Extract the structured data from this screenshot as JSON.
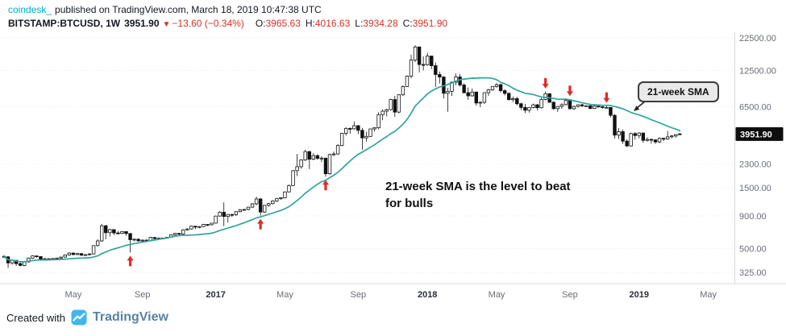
{
  "header": {
    "author": "coindesk_",
    "published": "published on TradingView.com, March 18, 2019 10:47:38 UTC",
    "symbol": "BITSTAMP:BTCUSD, 1W",
    "price": "3951.90",
    "direction": "▼",
    "change": "−13.60 (−0.34%)",
    "ohlc": [
      {
        "label": "O:",
        "value": "3965.63"
      },
      {
        "label": "H:",
        "value": "4016.63"
      },
      {
        "label": "L:",
        "value": "3934.28"
      },
      {
        "label": "C:",
        "value": "3951.90"
      }
    ]
  },
  "annotations": {
    "note_line1": "21-week SMA is the level to beat",
    "note_line2": "for bulls",
    "callout": "21-week SMA"
  },
  "footer": {
    "created_with": "Created with",
    "brand": "TradingView"
  },
  "colors": {
    "sma": "#2fa69a",
    "arrow": "#e12b2b",
    "candle_up": "#ffffff",
    "candle_down": "#111111",
    "candle_stroke": "#111111",
    "badge_bg": "#0e0e0e",
    "axis_line": "#d6d9e0",
    "grid": "#e7e9ef",
    "negative": "#d93025",
    "author_accent": "#00a5cf"
  },
  "chart_data": {
    "type": "candlestick",
    "symbol": "BITSTAMP:BTCUSD",
    "timeframe": "1W",
    "scale": "log",
    "y_axis": {
      "labels": [
        22500,
        12500,
        6500,
        2300,
        1500,
        900,
        500,
        325
      ],
      "current_price": 3951.9
    },
    "x_axis": {
      "ticks": [
        {
          "label": "May",
          "week": 17,
          "bold": false
        },
        {
          "label": "Sep",
          "week": 34,
          "bold": false
        },
        {
          "label": "2017",
          "week": 52,
          "bold": true
        },
        {
          "label": "May",
          "week": 69,
          "bold": false
        },
        {
          "label": "Sep",
          "week": 87,
          "bold": false
        },
        {
          "label": "2018",
          "week": 104,
          "bold": true
        },
        {
          "label": "May",
          "week": 121,
          "bold": false
        },
        {
          "label": "Sep",
          "week": 139,
          "bold": false
        },
        {
          "label": "2019",
          "week": 156,
          "bold": true
        },
        {
          "label": "May",
          "week": 173,
          "bold": false
        }
      ]
    },
    "sma": {
      "period": 21,
      "label": "21-week SMA"
    },
    "arrows_up_weeks": [
      31,
      63,
      79
    ],
    "arrows_down_weeks": [
      133,
      139,
      148
    ],
    "candles": [
      [
        433,
        444,
        420,
        430
      ],
      [
        430,
        435,
        352,
        385
      ],
      [
        385,
        410,
        372,
        403
      ],
      [
        403,
        408,
        365,
        380
      ],
      [
        380,
        398,
        362,
        368
      ],
      [
        368,
        400,
        363,
        392
      ],
      [
        392,
        424,
        388,
        420
      ],
      [
        420,
        442,
        415,
        437
      ],
      [
        437,
        441,
        424,
        432
      ],
      [
        432,
        434,
        402,
        410
      ],
      [
        410,
        422,
        405,
        415
      ],
      [
        415,
        420,
        404,
        412
      ],
      [
        412,
        421,
        407,
        417
      ],
      [
        417,
        424,
        411,
        420
      ],
      [
        420,
        432,
        415,
        428
      ],
      [
        428,
        450,
        423,
        445
      ],
      [
        445,
        466,
        440,
        460
      ],
      [
        460,
        465,
        442,
        448
      ],
      [
        448,
        460,
        443,
        456
      ],
      [
        456,
        459,
        436,
        443
      ],
      [
        443,
        452,
        437,
        447
      ],
      [
        447,
        460,
        441,
        453
      ],
      [
        453,
        530,
        448,
        526
      ],
      [
        526,
        590,
        519,
        573
      ],
      [
        573,
        780,
        565,
        754
      ],
      [
        754,
        765,
        590,
        665
      ],
      [
        665,
        715,
        620,
        703
      ],
      [
        703,
        710,
        640,
        662
      ],
      [
        662,
        688,
        645,
        657
      ],
      [
        657,
        684,
        649,
        679
      ],
      [
        679,
        682,
        630,
        655
      ],
      [
        655,
        660,
        465,
        586
      ],
      [
        586,
        600,
        569,
        591
      ],
      [
        591,
        598,
        565,
        574
      ],
      [
        574,
        590,
        567,
        581
      ],
      [
        581,
        590,
        566,
        573
      ],
      [
        573,
        617,
        570,
        610
      ],
      [
        610,
        615,
        589,
        598
      ],
      [
        598,
        610,
        591,
        602
      ],
      [
        602,
        608,
        593,
        604
      ],
      [
        604,
        618,
        597,
        611
      ],
      [
        611,
        645,
        606,
        640
      ],
      [
        640,
        662,
        634,
        657
      ],
      [
        657,
        660,
        630,
        650
      ],
      [
        650,
        708,
        645,
        700
      ],
      [
        700,
        720,
        691,
        711
      ],
      [
        711,
        755,
        704,
        748
      ],
      [
        748,
        752,
        710,
        735
      ],
      [
        735,
        750,
        719,
        743
      ],
      [
        743,
        780,
        737,
        772
      ],
      [
        772,
        778,
        749,
        768
      ],
      [
        768,
        795,
        759,
        790
      ],
      [
        790,
        905,
        784,
        898
      ],
      [
        898,
        982,
        889,
        963
      ],
      [
        963,
        1150,
        750,
        892
      ],
      [
        892,
        930,
        799,
        924
      ],
      [
        924,
        935,
        884,
        921
      ],
      [
        921,
        980,
        899,
        972
      ],
      [
        972,
        1020,
        959,
        1005
      ],
      [
        1005,
        1025,
        984,
        1012
      ],
      [
        1012,
        1065,
        999,
        1055
      ],
      [
        1055,
        1135,
        1044,
        1121
      ],
      [
        1121,
        1280,
        1089,
        1223
      ],
      [
        1223,
        1245,
        905,
        966
      ],
      [
        966,
        1100,
        949,
        1090
      ],
      [
        1090,
        1140,
        1059,
        1125
      ],
      [
        1125,
        1195,
        1109,
        1180
      ],
      [
        1180,
        1245,
        1164,
        1230
      ],
      [
        1230,
        1265,
        1204,
        1250
      ],
      [
        1250,
        1400,
        1239,
        1390
      ],
      [
        1390,
        1590,
        1379,
        1560
      ],
      [
        1560,
        2060,
        1539,
        2040
      ],
      [
        2040,
        2760,
        1850,
        2190
      ],
      [
        2190,
        2510,
        2109,
        2480
      ],
      [
        2480,
        2980,
        2439,
        2880
      ],
      [
        2880,
        2920,
        2100,
        2510
      ],
      [
        2510,
        2800,
        2459,
        2680
      ],
      [
        2680,
        2740,
        2479,
        2550
      ],
      [
        2550,
        2650,
        2380,
        2560
      ],
      [
        2560,
        2580,
        1830,
        1930
      ],
      [
        1930,
        2780,
        1889,
        2730
      ],
      [
        2730,
        2880,
        2659,
        2760
      ],
      [
        2760,
        3300,
        2719,
        3220
      ],
      [
        3220,
        4050,
        3179,
        4010
      ],
      [
        4010,
        4480,
        3850,
        4380
      ],
      [
        4380,
        4450,
        3969,
        4350
      ],
      [
        4350,
        4980,
        4289,
        4600
      ],
      [
        4600,
        4660,
        3950,
        4230
      ],
      [
        4230,
        4420,
        2980,
        3690
      ],
      [
        3690,
        4120,
        3459,
        3790
      ],
      [
        3790,
        4360,
        3749,
        4340
      ],
      [
        4340,
        4470,
        4149,
        4435
      ],
      [
        4435,
        5860,
        4319,
        5620
      ],
      [
        5620,
        6170,
        5080,
        5980
      ],
      [
        5980,
        6260,
        5450,
        6150
      ],
      [
        6150,
        7480,
        6049,
        7380
      ],
      [
        7380,
        7880,
        5400,
        5880
      ],
      [
        5880,
        8100,
        5749,
        8040
      ],
      [
        8040,
        9520,
        7849,
        9330
      ],
      [
        9330,
        11400,
        9249,
        11250
      ],
      [
        11250,
        16620,
        10849,
        15050
      ],
      [
        15050,
        19666,
        14500,
        19100
      ],
      [
        19100,
        19280,
        12050,
        13900
      ],
      [
        13900,
        16100,
        12499,
        13850
      ],
      [
        13850,
        17200,
        13599,
        16200
      ],
      [
        16200,
        16300,
        12800,
        13600
      ],
      [
        13600,
        14400,
        9250,
        11600
      ],
      [
        11600,
        12250,
        9849,
        11090
      ],
      [
        11090,
        11290,
        7540,
        8270
      ],
      [
        8270,
        9100,
        5920,
        8560
      ],
      [
        8560,
        10250,
        7889,
        10100
      ],
      [
        10100,
        11780,
        9549,
        11100
      ],
      [
        11100,
        11700,
        9350,
        9600
      ],
      [
        9600,
        9900,
        8249,
        8350
      ],
      [
        8350,
        9180,
        7330,
        7890
      ],
      [
        7890,
        9030,
        7789,
        8450
      ],
      [
        8450,
        8510,
        6600,
        6930
      ],
      [
        6930,
        7180,
        6429,
        7020
      ],
      [
        7020,
        8420,
        6799,
        8350
      ],
      [
        8350,
        8940,
        7879,
        8800
      ],
      [
        8800,
        9390,
        8649,
        9350
      ],
      [
        9350,
        9950,
        9149,
        9650
      ],
      [
        9650,
        9850,
        8350,
        8670
      ],
      [
        8670,
        8900,
        7949,
        8250
      ],
      [
        8250,
        8420,
        7290,
        7360
      ],
      [
        7360,
        7790,
        7049,
        7500
      ],
      [
        7500,
        7750,
        6649,
        6840
      ],
      [
        6840,
        6980,
        6119,
        6400
      ],
      [
        6400,
        6830,
        5780,
        6080
      ],
      [
        6080,
        6440,
        5829,
        6385
      ],
      [
        6385,
        6850,
        6289,
        6710
      ],
      [
        6710,
        6820,
        6079,
        6360
      ],
      [
        6360,
        7600,
        6259,
        7400
      ],
      [
        7400,
        8500,
        7279,
        8200
      ],
      [
        8200,
        8280,
        6949,
        7030
      ],
      [
        7030,
        7150,
        6129,
        6260
      ],
      [
        6260,
        6580,
        5899,
        6510
      ],
      [
        6510,
        6900,
        6239,
        6720
      ],
      [
        6720,
        7300,
        6649,
        7270
      ],
      [
        7270,
        7410,
        6179,
        6250
      ],
      [
        6250,
        6620,
        6119,
        6520
      ],
      [
        6520,
        6770,
        6379,
        6710
      ],
      [
        6710,
        6830,
        6429,
        6590
      ],
      [
        6590,
        6650,
        6439,
        6600
      ],
      [
        6600,
        6620,
        6189,
        6280
      ],
      [
        6280,
        6610,
        6209,
        6550
      ],
      [
        6550,
        6590,
        6379,
        6480
      ],
      [
        6480,
        6550,
        6269,
        6380
      ],
      [
        6380,
        6560,
        6329,
        6400
      ],
      [
        6400,
        6420,
        5350,
        5550
      ],
      [
        5550,
        5650,
        3650,
        3880
      ],
      [
        3880,
        4400,
        3619,
        4130
      ],
      [
        4130,
        4290,
        3310,
        3480
      ],
      [
        3480,
        3600,
        3130,
        3190
      ],
      [
        3190,
        4050,
        3149,
        3990
      ],
      [
        3990,
        4110,
        3570,
        3850
      ],
      [
        3850,
        4090,
        3649,
        4030
      ],
      [
        4030,
        4060,
        3380,
        3530
      ],
      [
        3530,
        3730,
        3449,
        3590
      ],
      [
        3590,
        3640,
        3329,
        3560
      ],
      [
        3560,
        3590,
        3309,
        3430
      ],
      [
        3430,
        3720,
        3349,
        3660
      ],
      [
        3660,
        3710,
        3469,
        3620
      ],
      [
        3620,
        4190,
        3569,
        3760
      ],
      [
        3760,
        3900,
        3659,
        3820
      ],
      [
        3820,
        3950,
        3699,
        3920
      ],
      [
        3965.63,
        4016.63,
        3934.28,
        3951.9
      ]
    ]
  }
}
